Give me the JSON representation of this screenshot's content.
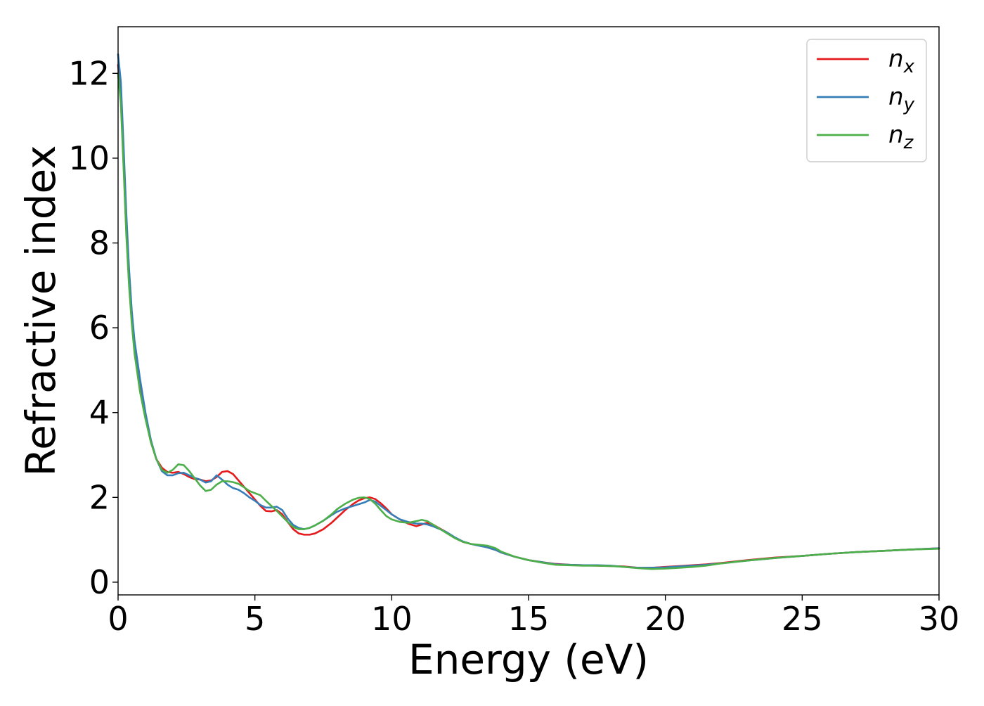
{
  "chart_data": {
    "type": "line",
    "title": "",
    "xlabel": "Energy (eV)",
    "ylabel": "Refractive index",
    "xlim": [
      0,
      30
    ],
    "ylim": [
      -0.3,
      13.1
    ],
    "xticks": [
      0,
      5,
      10,
      15,
      20,
      25,
      30
    ],
    "yticks": [
      0,
      2,
      4,
      6,
      8,
      10,
      12
    ],
    "grid": false,
    "legend_position": "top-right",
    "series": [
      {
        "name": "n",
        "subscript": "x",
        "color": "#e41a1c",
        "x": [
          0.0,
          0.1,
          0.2,
          0.3,
          0.4,
          0.5,
          0.6,
          0.8,
          1.0,
          1.2,
          1.4,
          1.6,
          1.8,
          2.0,
          2.2,
          2.4,
          2.6,
          2.8,
          3.0,
          3.2,
          3.4,
          3.6,
          3.8,
          4.0,
          4.2,
          4.4,
          4.6,
          4.8,
          5.0,
          5.2,
          5.4,
          5.6,
          5.8,
          6.0,
          6.2,
          6.4,
          6.6,
          6.8,
          7.0,
          7.2,
          7.5,
          7.8,
          8.0,
          8.3,
          8.6,
          8.8,
          9.0,
          9.2,
          9.4,
          9.6,
          9.8,
          10.0,
          10.3,
          10.6,
          10.9,
          11.1,
          11.3,
          11.5,
          11.8,
          12.0,
          12.3,
          12.6,
          12.9,
          13.2,
          13.5,
          13.8,
          14.0,
          14.5,
          15.0,
          15.5,
          16.0,
          16.5,
          17.0,
          17.5,
          18.0,
          18.5,
          19.0,
          19.5,
          20.0,
          20.5,
          21.0,
          21.5,
          22.0,
          23.0,
          24.0,
          25.0,
          26.0,
          27.0,
          28.0,
          29.0,
          30.0
        ],
        "y": [
          12.2,
          11.5,
          9.9,
          8.3,
          7.1,
          6.2,
          5.5,
          4.6,
          3.9,
          3.3,
          2.9,
          2.7,
          2.6,
          2.58,
          2.6,
          2.55,
          2.48,
          2.43,
          2.42,
          2.38,
          2.4,
          2.48,
          2.6,
          2.62,
          2.55,
          2.4,
          2.25,
          2.1,
          1.95,
          1.8,
          1.68,
          1.67,
          1.7,
          1.6,
          1.42,
          1.25,
          1.15,
          1.12,
          1.12,
          1.15,
          1.25,
          1.4,
          1.52,
          1.7,
          1.85,
          1.93,
          1.98,
          2.0,
          1.96,
          1.86,
          1.74,
          1.6,
          1.48,
          1.38,
          1.32,
          1.36,
          1.4,
          1.36,
          1.25,
          1.18,
          1.05,
          0.95,
          0.9,
          0.87,
          0.82,
          0.76,
          0.7,
          0.6,
          0.52,
          0.47,
          0.43,
          0.41,
          0.4,
          0.39,
          0.38,
          0.37,
          0.34,
          0.34,
          0.36,
          0.38,
          0.4,
          0.42,
          0.45,
          0.52,
          0.58,
          0.62,
          0.67,
          0.71,
          0.74,
          0.77,
          0.8
        ]
      },
      {
        "name": "n",
        "subscript": "y",
        "color": "#377eb8",
        "x": [
          0.0,
          0.1,
          0.2,
          0.3,
          0.4,
          0.5,
          0.6,
          0.8,
          1.0,
          1.2,
          1.4,
          1.6,
          1.8,
          2.0,
          2.2,
          2.4,
          2.6,
          2.8,
          3.0,
          3.2,
          3.4,
          3.6,
          3.8,
          4.0,
          4.2,
          4.4,
          4.6,
          4.8,
          5.0,
          5.2,
          5.4,
          5.6,
          5.8,
          6.0,
          6.2,
          6.4,
          6.6,
          6.8,
          7.0,
          7.2,
          7.5,
          7.8,
          8.0,
          8.3,
          8.6,
          8.8,
          9.0,
          9.2,
          9.4,
          9.6,
          9.8,
          10.0,
          10.3,
          10.6,
          10.9,
          11.1,
          11.3,
          11.5,
          11.8,
          12.0,
          12.3,
          12.6,
          12.9,
          13.2,
          13.5,
          13.8,
          14.0,
          14.5,
          15.0,
          15.5,
          16.0,
          16.5,
          17.0,
          17.5,
          18.0,
          18.5,
          19.0,
          19.5,
          20.0,
          20.5,
          21.0,
          21.5,
          22.0,
          23.0,
          24.0,
          25.0,
          26.0,
          27.0,
          28.0,
          29.0,
          30.0
        ],
        "y": [
          12.45,
          11.8,
          10.3,
          8.7,
          7.4,
          6.4,
          5.7,
          4.8,
          4.0,
          3.35,
          2.9,
          2.62,
          2.52,
          2.52,
          2.57,
          2.58,
          2.52,
          2.46,
          2.42,
          2.35,
          2.38,
          2.52,
          2.42,
          2.3,
          2.22,
          2.18,
          2.1,
          2.0,
          1.92,
          1.82,
          1.76,
          1.76,
          1.78,
          1.7,
          1.5,
          1.35,
          1.28,
          1.25,
          1.28,
          1.34,
          1.45,
          1.58,
          1.66,
          1.74,
          1.8,
          1.84,
          1.88,
          1.94,
          1.9,
          1.8,
          1.7,
          1.6,
          1.48,
          1.42,
          1.38,
          1.38,
          1.36,
          1.32,
          1.24,
          1.18,
          1.06,
          0.96,
          0.9,
          0.86,
          0.82,
          0.76,
          0.7,
          0.6,
          0.52,
          0.47,
          0.42,
          0.41,
          0.4,
          0.4,
          0.39,
          0.36,
          0.34,
          0.34,
          0.35,
          0.37,
          0.39,
          0.41,
          0.44,
          0.51,
          0.57,
          0.62,
          0.67,
          0.71,
          0.74,
          0.77,
          0.8
        ]
      },
      {
        "name": "n",
        "subscript": "z",
        "color": "#4daf4a",
        "x": [
          0.0,
          0.1,
          0.2,
          0.3,
          0.4,
          0.5,
          0.6,
          0.8,
          1.0,
          1.2,
          1.4,
          1.6,
          1.8,
          2.0,
          2.2,
          2.4,
          2.6,
          2.8,
          3.0,
          3.2,
          3.4,
          3.6,
          3.8,
          4.0,
          4.2,
          4.4,
          4.6,
          4.8,
          5.0,
          5.2,
          5.4,
          5.6,
          5.8,
          6.0,
          6.2,
          6.4,
          6.6,
          6.8,
          7.0,
          7.2,
          7.5,
          7.8,
          8.0,
          8.3,
          8.6,
          8.8,
          9.0,
          9.2,
          9.4,
          9.6,
          9.8,
          10.0,
          10.3,
          10.6,
          10.9,
          11.1,
          11.3,
          11.5,
          11.8,
          12.0,
          12.3,
          12.6,
          12.9,
          13.2,
          13.5,
          13.8,
          14.0,
          14.5,
          15.0,
          15.5,
          16.0,
          16.5,
          17.0,
          17.5,
          18.0,
          18.5,
          19.0,
          19.5,
          20.0,
          20.5,
          21.0,
          21.5,
          22.0,
          23.0,
          24.0,
          25.0,
          26.0,
          27.0,
          28.0,
          29.0,
          30.0
        ],
        "y": [
          12.0,
          11.3,
          9.8,
          8.2,
          7.0,
          6.1,
          5.4,
          4.5,
          3.85,
          3.3,
          2.9,
          2.65,
          2.58,
          2.65,
          2.78,
          2.76,
          2.62,
          2.45,
          2.28,
          2.15,
          2.18,
          2.3,
          2.38,
          2.38,
          2.36,
          2.32,
          2.24,
          2.15,
          2.1,
          2.05,
          1.92,
          1.8,
          1.68,
          1.55,
          1.42,
          1.3,
          1.25,
          1.25,
          1.28,
          1.34,
          1.45,
          1.6,
          1.72,
          1.85,
          1.95,
          1.99,
          2.0,
          1.96,
          1.85,
          1.7,
          1.56,
          1.48,
          1.42,
          1.4,
          1.44,
          1.47,
          1.44,
          1.36,
          1.24,
          1.16,
          1.04,
          0.95,
          0.9,
          0.88,
          0.86,
          0.8,
          0.72,
          0.6,
          0.52,
          0.46,
          0.41,
          0.4,
          0.39,
          0.39,
          0.38,
          0.36,
          0.33,
          0.31,
          0.32,
          0.34,
          0.36,
          0.39,
          0.44,
          0.51,
          0.57,
          0.62,
          0.67,
          0.71,
          0.74,
          0.77,
          0.79
        ]
      }
    ]
  }
}
